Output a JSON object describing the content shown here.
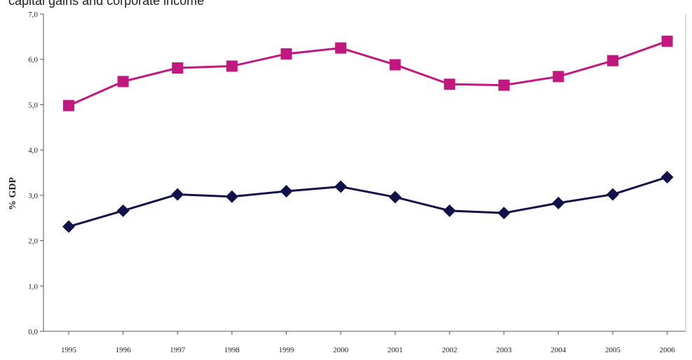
{
  "caption": "capital gains and corporate income",
  "chart_data": {
    "type": "line",
    "title": "",
    "xlabel": "",
    "ylabel": "% GDP",
    "categories": [
      "1995",
      "1996",
      "1997",
      "1998",
      "1999",
      "2000",
      "2001",
      "2002",
      "2003",
      "2004",
      "2005",
      "2006"
    ],
    "ylim": [
      0,
      7
    ],
    "yticks": [
      "0,0",
      "1,0",
      "2,0",
      "3,0",
      "4,0",
      "5,0",
      "6,0",
      "7,0"
    ],
    "grid": false,
    "series": [
      {
        "color": "#c0187e",
        "marker": "square",
        "values": [
          4.98,
          5.51,
          5.81,
          5.85,
          6.12,
          6.25,
          5.88,
          5.45,
          5.43,
          5.62,
          5.97,
          6.4
        ]
      },
      {
        "color": "#12124a",
        "marker": "diamond",
        "values": [
          2.31,
          2.66,
          3.02,
          2.97,
          3.09,
          3.19,
          2.96,
          2.66,
          2.61,
          2.83,
          3.02,
          3.4
        ]
      }
    ]
  }
}
